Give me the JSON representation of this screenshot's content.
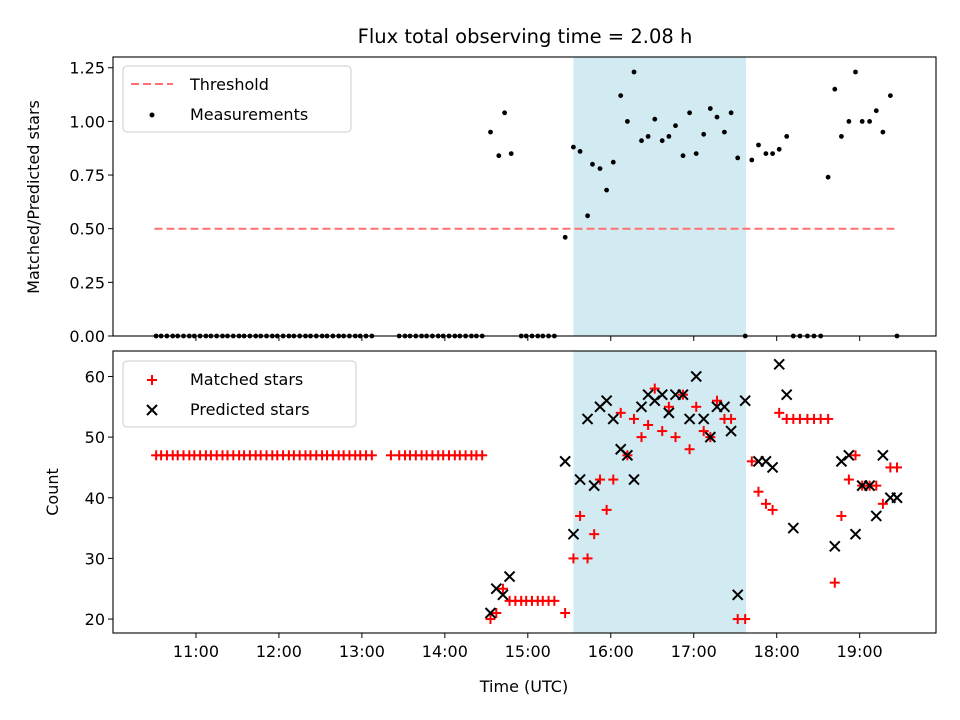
{
  "title": "Flux total observing time = 2.08 h",
  "colors": {
    "threshold": "#ff7070",
    "matched": "#ff0000",
    "predicted": "#000000",
    "span": "#add8e6",
    "measurement": "#000000"
  },
  "chart_data": [
    {
      "type": "scatter",
      "ylabel": "Matched/Predicted stars",
      "xlabel": "",
      "ylim": [
        0,
        1.3
      ],
      "xlim": [
        10.0,
        19.92
      ],
      "yticks": [
        0,
        0.25,
        0.5,
        0.75,
        1.0,
        1.25
      ],
      "ytick_labels": [
        "0.00",
        "0.25",
        "0.50",
        "0.75",
        "1.00",
        "1.25"
      ],
      "highlight_span": [
        15.55,
        17.63
      ],
      "legend": {
        "position": "top-left",
        "entries": [
          "Threshold",
          "Measurements"
        ]
      },
      "threshold": {
        "name": "Threshold",
        "y": 0.5,
        "x": [
          10.5,
          19.45
        ]
      },
      "series": [
        {
          "name": "Measurements",
          "x": [
            10.52,
            10.58,
            10.65,
            10.72,
            10.78,
            10.85,
            10.92,
            10.98,
            11.05,
            11.12,
            11.18,
            11.25,
            11.32,
            11.38,
            11.45,
            11.52,
            11.58,
            11.65,
            11.72,
            11.78,
            11.85,
            11.92,
            11.98,
            12.05,
            12.12,
            12.18,
            12.25,
            12.32,
            12.38,
            12.45,
            12.52,
            12.58,
            12.65,
            12.72,
            12.78,
            12.85,
            12.92,
            12.98,
            13.05,
            13.12,
            13.45,
            13.52,
            13.58,
            13.65,
            13.72,
            13.78,
            13.85,
            13.92,
            13.98,
            14.05,
            14.12,
            14.18,
            14.25,
            14.32,
            14.38,
            14.45,
            14.55,
            14.65,
            14.72,
            14.8,
            14.92,
            14.98,
            15.05,
            15.12,
            15.18,
            15.25,
            15.32,
            15.45,
            15.55,
            15.63,
            15.72,
            15.78,
            15.87,
            15.95,
            16.03,
            16.12,
            16.2,
            16.28,
            16.37,
            16.45,
            16.53,
            16.62,
            16.7,
            16.78,
            16.87,
            16.95,
            17.03,
            17.12,
            17.2,
            17.28,
            17.37,
            17.45,
            17.53,
            17.62,
            17.7,
            17.78,
            17.87,
            17.95,
            18.03,
            18.12,
            18.2,
            18.28,
            18.37,
            18.45,
            18.53,
            18.62,
            18.7,
            18.78,
            18.87,
            18.95,
            19.03,
            19.12,
            19.2,
            19.28,
            19.37,
            19.45
          ],
          "y": [
            0,
            0,
            0,
            0,
            0,
            0,
            0,
            0,
            0,
            0,
            0,
            0,
            0,
            0,
            0,
            0,
            0,
            0,
            0,
            0,
            0,
            0,
            0,
            0,
            0,
            0,
            0,
            0,
            0,
            0,
            0,
            0,
            0,
            0,
            0,
            0,
            0,
            0,
            0,
            0,
            0,
            0,
            0,
            0,
            0,
            0,
            0,
            0,
            0,
            0,
            0,
            0,
            0,
            0,
            0,
            0,
            0.95,
            0.84,
            1.04,
            0.85,
            0,
            0,
            0,
            0,
            0,
            0,
            0,
            0.46,
            0.88,
            0.86,
            0.56,
            0.8,
            0.78,
            0.68,
            0.81,
            1.12,
            1.0,
            1.23,
            0.91,
            0.93,
            1.01,
            0.91,
            0.93,
            0.98,
            0.84,
            1.04,
            0.85,
            0.94,
            1.06,
            1.02,
            0.95,
            1.04,
            0.83,
            0,
            0.82,
            0.89,
            0.85,
            0.85,
            0.87,
            0.93,
            0,
            0,
            0,
            0,
            0,
            0.74,
            1.15,
            0.93,
            1.0,
            1.23,
            1.0,
            1.0,
            1.05,
            0.95,
            1.12,
            0
          ]
        }
      ]
    },
    {
      "type": "scatter",
      "ylabel": "Count",
      "xlabel": "Time (UTC)",
      "ylim": [
        17.7,
        64.2
      ],
      "xlim": [
        10.0,
        19.92
      ],
      "yticks": [
        20,
        30,
        40,
        50,
        60
      ],
      "ytick_labels": [
        "20",
        "30",
        "40",
        "50",
        "60"
      ],
      "xticks": [
        11,
        12,
        13,
        14,
        15,
        16,
        17,
        18,
        19
      ],
      "xtick_labels": [
        "11:00",
        "12:00",
        "13:00",
        "14:00",
        "15:00",
        "16:00",
        "17:00",
        "18:00",
        "19:00"
      ],
      "highlight_span": [
        15.55,
        17.63
      ],
      "legend": {
        "position": "top-left",
        "entries": [
          "Matched stars",
          "Predicted stars"
        ]
      },
      "series": [
        {
          "name": "Matched stars",
          "marker": "+",
          "x": [
            10.52,
            10.58,
            10.65,
            10.72,
            10.78,
            10.85,
            10.92,
            10.98,
            11.05,
            11.12,
            11.18,
            11.25,
            11.32,
            11.38,
            11.45,
            11.52,
            11.58,
            11.65,
            11.72,
            11.78,
            11.85,
            11.92,
            11.98,
            12.05,
            12.12,
            12.18,
            12.25,
            12.32,
            12.38,
            12.45,
            12.52,
            12.58,
            12.65,
            12.72,
            12.78,
            12.85,
            12.92,
            12.98,
            13.05,
            13.12,
            13.35,
            13.45,
            13.52,
            13.58,
            13.65,
            13.72,
            13.78,
            13.85,
            13.92,
            13.98,
            14.05,
            14.12,
            14.18,
            14.25,
            14.32,
            14.38,
            14.45,
            14.55,
            14.62,
            14.7,
            14.78,
            14.85,
            14.92,
            14.98,
            15.05,
            15.12,
            15.18,
            15.25,
            15.32,
            15.45,
            15.55,
            15.63,
            15.72,
            15.8,
            15.87,
            15.95,
            16.03,
            16.12,
            16.2,
            16.28,
            16.37,
            16.45,
            16.53,
            16.62,
            16.7,
            16.78,
            16.87,
            16.95,
            17.03,
            17.12,
            17.2,
            17.28,
            17.37,
            17.45,
            17.53,
            17.62,
            17.7,
            17.78,
            17.87,
            17.95,
            18.03,
            18.12,
            18.2,
            18.28,
            18.37,
            18.45,
            18.53,
            18.62,
            18.7,
            18.78,
            18.87,
            18.95,
            19.03,
            19.12,
            19.2,
            19.28,
            19.37,
            19.45
          ],
          "y": [
            47,
            47,
            47,
            47,
            47,
            47,
            47,
            47,
            47,
            47,
            47,
            47,
            47,
            47,
            47,
            47,
            47,
            47,
            47,
            47,
            47,
            47,
            47,
            47,
            47,
            47,
            47,
            47,
            47,
            47,
            47,
            47,
            47,
            47,
            47,
            47,
            47,
            47,
            47,
            47,
            47,
            47,
            47,
            47,
            47,
            47,
            47,
            47,
            47,
            47,
            47,
            47,
            47,
            47,
            47,
            47,
            47,
            20,
            21,
            25,
            23,
            23,
            23,
            23,
            23,
            23,
            23,
            23,
            23,
            21,
            30,
            37,
            30,
            34,
            43,
            38,
            43,
            54,
            47,
            53,
            50,
            52,
            58,
            51,
            55,
            50,
            57,
            48,
            55,
            51,
            50,
            56,
            53,
            53,
            20,
            20,
            46,
            41,
            39,
            38,
            54,
            53,
            53,
            53,
            53,
            53,
            53,
            53,
            26,
            37,
            43,
            47,
            42,
            42,
            42,
            39,
            45,
            45
          ]
        },
        {
          "name": "Predicted stars",
          "marker": "x",
          "x": [
            14.55,
            14.62,
            14.7,
            14.78,
            15.45,
            15.55,
            15.63,
            15.72,
            15.8,
            15.87,
            15.95,
            16.03,
            16.12,
            16.2,
            16.28,
            16.37,
            16.45,
            16.53,
            16.62,
            16.7,
            16.78,
            16.87,
            16.95,
            17.03,
            17.12,
            17.2,
            17.28,
            17.37,
            17.45,
            17.53,
            17.62,
            17.78,
            17.87,
            17.95,
            18.03,
            18.12,
            18.2,
            18.7,
            18.78,
            18.87,
            18.95,
            19.03,
            19.12,
            19.2,
            19.28,
            19.37,
            19.45
          ],
          "y": [
            21,
            25,
            24,
            27,
            46,
            34,
            43,
            53,
            42,
            55,
            56,
            53,
            48,
            47,
            43,
            55,
            57,
            56,
            57,
            54,
            57,
            57,
            53,
            60,
            53,
            50,
            55,
            55,
            51,
            24,
            56,
            46,
            46,
            45,
            62,
            57,
            35,
            32,
            46,
            47,
            34,
            42,
            42,
            37,
            47,
            40,
            40
          ]
        }
      ]
    }
  ]
}
